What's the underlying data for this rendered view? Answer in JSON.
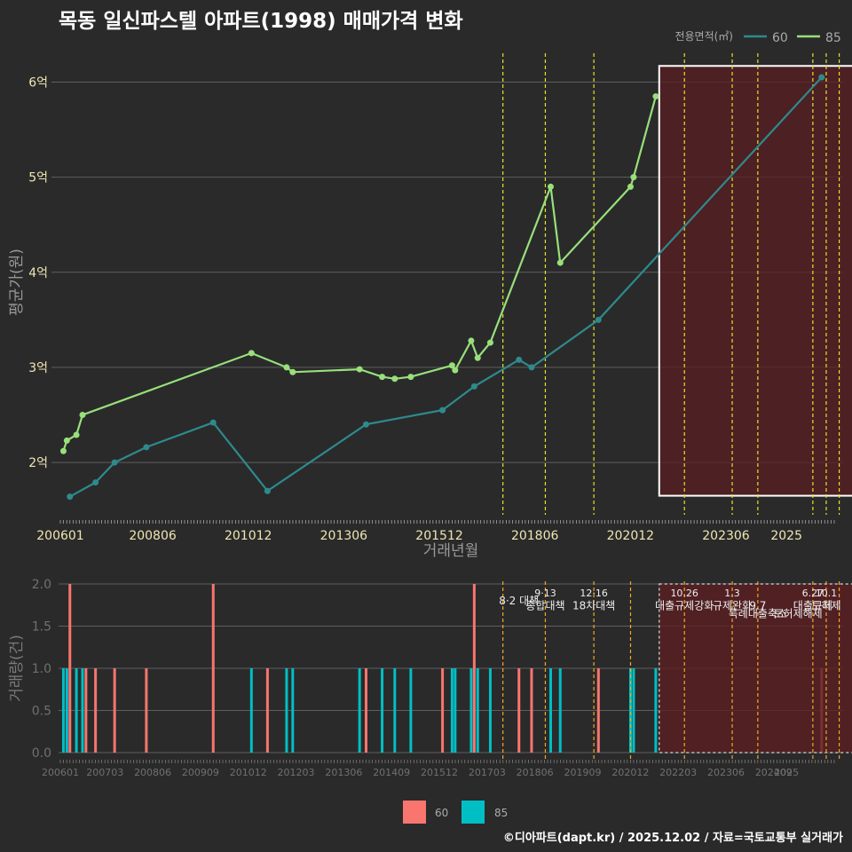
{
  "title": "목동 일신파스텔 아파트(1998) 매매가격 변화",
  "credit": "©디아파트(dapt.kr) / 2025.12.02 / 자료=국토교통부 실거래가",
  "colors": {
    "bg": "#2a2a2b",
    "s60_top": "#2e8a8c",
    "s85_top": "#98e07a",
    "s60_bot": "#f8766d",
    "s85_bot": "#00bfc4",
    "policy": "#e3e32a",
    "policy_bot": "#f5a623",
    "highlight": "#5a1e22"
  },
  "chart_data": [
    {
      "type": "line",
      "title": "목동 일신파스텔 아파트(1998) 매매가격 변화",
      "xlabel": "거래년월",
      "ylabel": "평균가(원)",
      "x_ticks": [
        "200601",
        "200806",
        "201012",
        "201306",
        "201512",
        "201806",
        "202012",
        "202306",
        "2025"
      ],
      "y_ticks": [
        {
          "v": 2,
          "label": "2억"
        },
        {
          "v": 3,
          "label": "3억"
        },
        {
          "v": 4,
          "label": "4억"
        },
        {
          "v": 5,
          "label": "5억"
        },
        {
          "v": 6,
          "label": "6억"
        }
      ],
      "ylim": [
        1.45,
        6.35
      ],
      "legend": {
        "title": "전용면적(㎡)",
        "items": [
          "60",
          "85"
        ],
        "position": "top-right"
      },
      "series": [
        {
          "name": "60",
          "points": [
            [
              2006.25,
              1.64
            ],
            [
              2006.92,
              1.79
            ],
            [
              2007.42,
              2.0
            ],
            [
              2008.25,
              2.16
            ],
            [
              2010.0,
              2.42
            ],
            [
              2011.42,
              1.7
            ],
            [
              2014.0,
              2.4
            ],
            [
              2016.0,
              2.55
            ],
            [
              2016.83,
              2.8
            ],
            [
              2018.0,
              3.08
            ],
            [
              2018.33,
              3.0
            ],
            [
              2020.08,
              3.5
            ],
            [
              2025.92,
              6.05
            ]
          ]
        },
        {
          "name": "85",
          "points": [
            [
              2006.08,
              2.12
            ],
            [
              2006.17,
              2.23
            ],
            [
              2006.42,
              2.29
            ],
            [
              2006.58,
              2.5
            ],
            [
              2011.0,
              3.15
            ],
            [
              2011.92,
              3.0
            ],
            [
              2012.08,
              2.95
            ],
            [
              2013.83,
              2.98
            ],
            [
              2014.42,
              2.9
            ],
            [
              2014.75,
              2.88
            ],
            [
              2015.17,
              2.9
            ],
            [
              2016.25,
              3.02
            ],
            [
              2016.33,
              2.97
            ],
            [
              2016.75,
              3.28
            ],
            [
              2016.92,
              3.1
            ],
            [
              2017.25,
              3.26
            ],
            [
              2018.83,
              4.9
            ],
            [
              2019.08,
              4.1
            ],
            [
              2020.92,
              4.9
            ],
            [
              2021.0,
              5.0
            ],
            [
              2021.58,
              5.85
            ]
          ]
        }
      ],
      "policy_years": [
        2017.58,
        2018.69,
        2019.96,
        2022.33,
        2023.58,
        2024.25,
        2025.69,
        2026.04,
        2026.38
      ],
      "highlight_range": [
        2021.67,
        2026.75
      ]
    },
    {
      "type": "bar",
      "ylabel": "거래량(건)",
      "x_ticks": [
        "200601",
        "200703",
        "200806",
        "200909",
        "201012",
        "201203",
        "201306",
        "201409",
        "201512",
        "201703",
        "201806",
        "201909",
        "202012",
        "202203",
        "202306",
        "202409",
        "2025"
      ],
      "y_ticks": [
        "0.0",
        "0.5",
        "1.0",
        "1.5",
        "2.0"
      ],
      "ylim": [
        0,
        2.1
      ],
      "legend": {
        "items": [
          "60",
          "85"
        ],
        "position": "bottom"
      },
      "bars_60": [
        [
          2006.25,
          2
        ],
        [
          2006.67,
          1
        ],
        [
          2006.92,
          1
        ],
        [
          2007.42,
          1
        ],
        [
          2008.25,
          1
        ],
        [
          2010.0,
          2
        ],
        [
          2011.42,
          1
        ],
        [
          2014.0,
          1
        ],
        [
          2016.0,
          1
        ],
        [
          2016.83,
          2
        ],
        [
          2018.0,
          1
        ],
        [
          2018.33,
          1
        ],
        [
          2020.08,
          1
        ],
        [
          2025.92,
          1
        ]
      ],
      "bars_85": [
        [
          2006.08,
          1
        ],
        [
          2006.17,
          1
        ],
        [
          2006.42,
          1
        ],
        [
          2006.58,
          1
        ],
        [
          2011.0,
          1
        ],
        [
          2011.92,
          1
        ],
        [
          2012.08,
          1
        ],
        [
          2013.83,
          1
        ],
        [
          2014.42,
          1
        ],
        [
          2014.75,
          1
        ],
        [
          2015.17,
          1
        ],
        [
          2016.25,
          1
        ],
        [
          2016.33,
          1
        ],
        [
          2016.75,
          1
        ],
        [
          2016.92,
          1
        ],
        [
          2017.25,
          1
        ],
        [
          2018.83,
          1
        ],
        [
          2019.08,
          1
        ],
        [
          2020.92,
          1
        ],
        [
          2021.0,
          1
        ],
        [
          2021.58,
          1
        ]
      ],
      "policy_lines": [
        2017.58,
        2018.69,
        2019.96,
        2020.92,
        2022.33,
        2023.58,
        2024.25,
        2025.69,
        2026.04,
        2026.38
      ],
      "policy_labels": [
        {
          "x": 2018.0,
          "row": 0,
          "text": "8·2 대책"
        },
        {
          "x": 2018.69,
          "row": -1,
          "text": "9·13"
        },
        {
          "x": 2018.69,
          "row": 0.6,
          "text": "종합대책"
        },
        {
          "x": 2019.96,
          "row": -1,
          "text": "12·16"
        },
        {
          "x": 2019.96,
          "row": 0.6,
          "text": "18차대책"
        },
        {
          "x": 2022.33,
          "row": -1,
          "text": "10.26"
        },
        {
          "x": 2022.33,
          "row": 0.6,
          "text": "대출규제강화"
        },
        {
          "x": 2023.58,
          "row": -1,
          "text": "1.3"
        },
        {
          "x": 2023.58,
          "row": 0.6,
          "text": "규제완화"
        },
        {
          "x": 2024.25,
          "row": 0.6,
          "text": "9.7"
        },
        {
          "x": 2024.25,
          "row": 1.6,
          "text": "특례대출축소"
        },
        {
          "x": 2025.69,
          "row": -1,
          "text": "6.27"
        },
        {
          "x": 2025.69,
          "row": 0.6,
          "text": "대출규제"
        },
        {
          "x": 2026.04,
          "row": -1,
          "text": "10.1"
        },
        {
          "x": 2026.04,
          "row": 0.6,
          "text": "토허제"
        },
        {
          "x": 2025.3,
          "row": 1.6,
          "text": "토허제해제"
        }
      ],
      "highlight_range": [
        2021.67,
        2026.75
      ]
    }
  ]
}
